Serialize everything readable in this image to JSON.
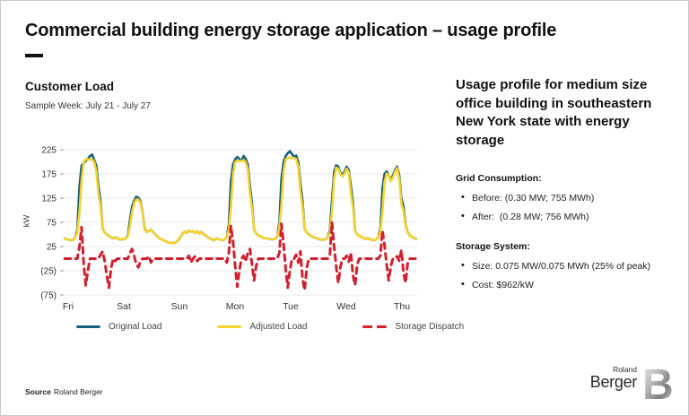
{
  "page": {
    "title": "Commercial building energy storage application – usage profile",
    "source_label": "Source",
    "source_value": "Roland Berger",
    "logo": {
      "line1": "Roland",
      "line2": "Berger",
      "letter": "B"
    }
  },
  "right_panel": {
    "heading": "Usage profile for medium size office building in southeastern New York state with energy storage",
    "sections": [
      {
        "title": "Grid Consumption:",
        "bullets": [
          "Before: (0.30 MW; 755 MWh)",
          "After:  (0.28 MW; 756 MWh)"
        ]
      },
      {
        "title": "Storage System:",
        "bullets": [
          "Size: 0.075 MW/0.075 MWh (25% of peak)",
          "Cost: $962/kW"
        ]
      }
    ]
  },
  "legend": {
    "items": [
      {
        "label": "Original Load",
        "color": "#16607a",
        "dashed": false
      },
      {
        "label": "Adjusted Load",
        "color": "#f5d32b",
        "dashed": false
      },
      {
        "label": "Storage Dispatch",
        "color": "#d0202e",
        "dashed": true
      }
    ]
  },
  "chart_data": {
    "type": "line",
    "title": "Customer Load",
    "subtitle": "Sample Week: July 21 - July 27",
    "ylabel": "kW",
    "x_unit": "hour of week (hourly values, Fri 00:00 – Thu 24:00)",
    "x_categories": [
      "Fri",
      "Sat",
      "Sun",
      "Mon",
      "Tue",
      "Wed",
      "Thu"
    ],
    "ylim": [
      -75,
      225
    ],
    "yticks": [
      225,
      175,
      125,
      75,
      25,
      -25,
      -75
    ],
    "ytick_labels": [
      "225",
      "175",
      "125",
      "75",
      "25",
      "(25)",
      "(75)"
    ],
    "grid": true,
    "legend_position": "bottom",
    "series": [
      {
        "name": "Original Load",
        "color": "#16607a",
        "width": 2.6,
        "dash": null,
        "days": {
          "Fri": [
            42,
            40,
            39,
            38,
            39,
            44,
            60,
            150,
            192,
            198,
            202,
            206,
            212,
            215,
            204,
            192,
            150,
            120,
            62,
            54,
            50,
            47,
            44,
            42
          ],
          "Sat": [
            44,
            42,
            40,
            40,
            40,
            42,
            48,
            80,
            108,
            120,
            128,
            126,
            118,
            96,
            62,
            55,
            57,
            60,
            55,
            50,
            46,
            42,
            40,
            38
          ],
          "Sun": [
            36,
            34,
            33,
            32,
            32,
            34,
            38,
            45,
            52,
            56,
            53,
            58,
            55,
            57,
            53,
            57,
            52,
            55,
            50,
            48,
            44,
            42,
            40,
            38
          ],
          "Mon": [
            42,
            40,
            39,
            38,
            40,
            45,
            70,
            160,
            195,
            205,
            210,
            206,
            202,
            212,
            206,
            195,
            150,
            115,
            60,
            52,
            48,
            46,
            44,
            42
          ],
          "Tue": [
            42,
            41,
            40,
            40,
            41,
            46,
            75,
            165,
            200,
            212,
            218,
            222,
            216,
            210,
            213,
            200,
            155,
            120,
            62,
            54,
            50,
            47,
            45,
            43
          ],
          "Wed": [
            42,
            40,
            39,
            39,
            40,
            44,
            60,
            120,
            180,
            193,
            190,
            178,
            172,
            180,
            190,
            183,
            150,
            115,
            58,
            50,
            47,
            45,
            43,
            41
          ],
          "Thu": [
            42,
            40,
            39,
            38,
            40,
            44,
            62,
            145,
            175,
            180,
            172,
            163,
            172,
            183,
            190,
            172,
            125,
            108,
            70,
            55,
            48,
            45,
            43,
            41
          ]
        }
      },
      {
        "name": "Adjusted Load",
        "color": "#f5d32b",
        "width": 2.6,
        "dash": null,
        "days": {
          "Fri": [
            42,
            40,
            39,
            38,
            39,
            44,
            55,
            95,
            160,
            200,
            205,
            205,
            205,
            205,
            200,
            180,
            135,
            110,
            62,
            54,
            50,
            47,
            44,
            42
          ],
          "Sat": [
            44,
            42,
            40,
            40,
            40,
            42,
            46,
            68,
            96,
            115,
            122,
            122,
            115,
            94,
            60,
            55,
            57,
            60,
            55,
            50,
            46,
            42,
            40,
            38
          ],
          "Sun": [
            36,
            34,
            33,
            32,
            32,
            34,
            38,
            45,
            52,
            56,
            53,
            58,
            55,
            57,
            53,
            57,
            52,
            55,
            50,
            48,
            44,
            42,
            40,
            38
          ],
          "Mon": [
            42,
            40,
            39,
            38,
            40,
            45,
            60,
            105,
            175,
            200,
            202,
            202,
            202,
            203,
            200,
            185,
            135,
            105,
            60,
            52,
            48,
            46,
            44,
            42
          ],
          "Tue": [
            42,
            41,
            40,
            40,
            41,
            46,
            65,
            110,
            180,
            205,
            208,
            209,
            208,
            208,
            206,
            190,
            140,
            108,
            62,
            54,
            50,
            47,
            45,
            43
          ],
          "Wed": [
            42,
            40,
            39,
            39,
            40,
            44,
            55,
            95,
            165,
            188,
            186,
            175,
            170,
            176,
            186,
            178,
            135,
            105,
            58,
            50,
            47,
            45,
            43,
            41
          ],
          "Thu": [
            42,
            40,
            39,
            38,
            40,
            44,
            56,
            98,
            158,
            176,
            172,
            160,
            168,
            179,
            187,
            164,
            115,
            98,
            68,
            55,
            48,
            45,
            43,
            41
          ]
        }
      },
      {
        "name": "Storage Dispatch",
        "color": "#d0202e",
        "width": 3,
        "dash": "6.5 5.5",
        "days": {
          "Fri": [
            0,
            0,
            0,
            0,
            0,
            0,
            0,
            25,
            65,
            -10,
            -55,
            -25,
            0,
            0,
            0,
            0,
            0,
            8,
            15,
            -5,
            -35,
            -60,
            -20,
            0
          ],
          "Sat": [
            -5,
            0,
            0,
            0,
            0,
            0,
            0,
            12,
            20,
            6,
            -12,
            -18,
            -5,
            0,
            0,
            0,
            5,
            -8,
            0,
            0,
            0,
            0,
            0,
            0
          ],
          "Sun": [
            0,
            0,
            0,
            0,
            0,
            0,
            0,
            0,
            0,
            0,
            0,
            6,
            -8,
            0,
            5,
            -5,
            0,
            0,
            0,
            0,
            0,
            0,
            0,
            0
          ],
          "Mon": [
            0,
            0,
            0,
            0,
            0,
            -8,
            12,
            68,
            35,
            -15,
            -58,
            -25,
            0,
            6,
            -6,
            12,
            20,
            -12,
            -45,
            -15,
            0,
            0,
            0,
            0
          ],
          "Tue": [
            0,
            0,
            0,
            0,
            0,
            0,
            12,
            72,
            30,
            -20,
            -60,
            -25,
            0,
            0,
            8,
            -8,
            15,
            -40,
            -65,
            -20,
            0,
            0,
            0,
            0
          ],
          "Wed": [
            0,
            0,
            0,
            0,
            0,
            0,
            8,
            75,
            25,
            -15,
            -50,
            -18,
            0,
            0,
            6,
            -6,
            12,
            -35,
            -55,
            -12,
            0,
            0,
            0,
            0
          ],
          "Thu": [
            0,
            0,
            0,
            0,
            0,
            0,
            6,
            58,
            28,
            -12,
            -45,
            -15,
            0,
            0,
            5,
            -5,
            18,
            -30,
            -50,
            -10,
            0,
            0,
            0,
            0
          ]
        }
      }
    ]
  }
}
